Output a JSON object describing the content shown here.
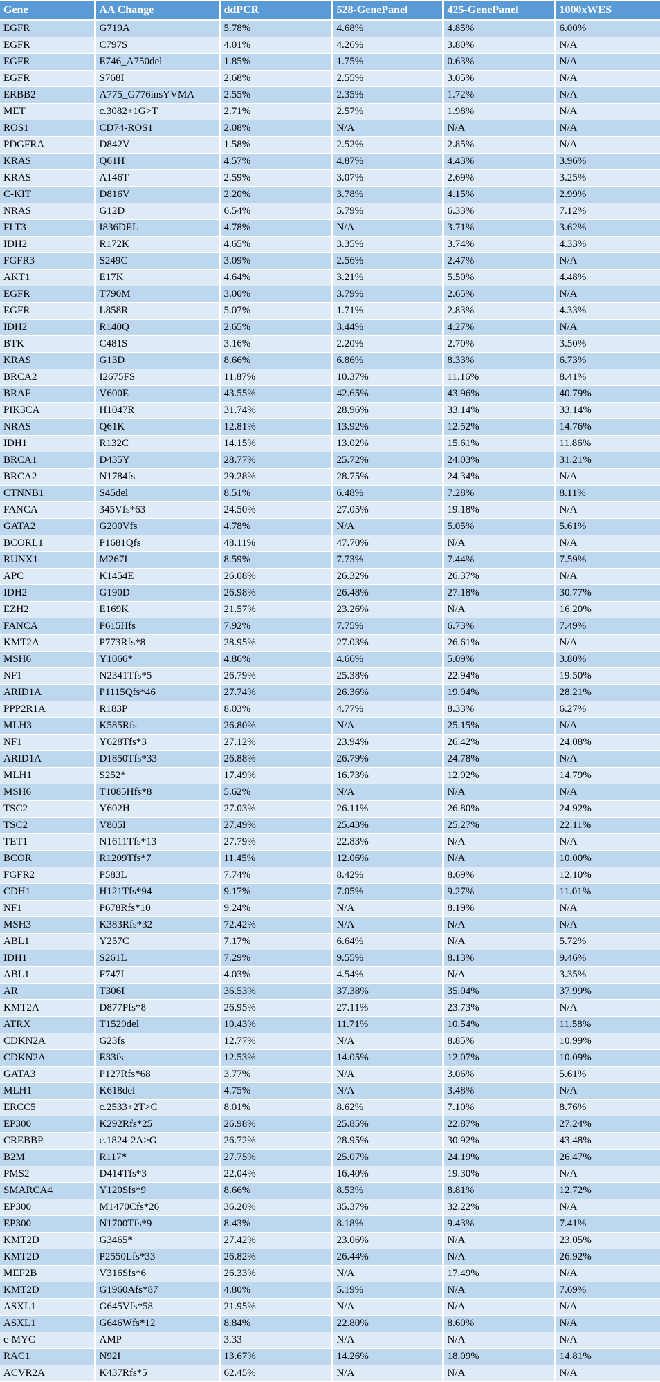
{
  "colors": {
    "header_bg": "#5B9BD5",
    "header_text": "#FFFFFF",
    "row_dark": "#BDD7EE",
    "row_light": "#DEEBF7",
    "body_text": "#000000",
    "grid": "#FFFFFF"
  },
  "table": {
    "columns": [
      {
        "key": "gene",
        "label": "Gene"
      },
      {
        "key": "aa-change",
        "label": "AA Change"
      },
      {
        "key": "ddpcr",
        "label": "ddPCR"
      },
      {
        "key": "panel-528",
        "label": "528-GenePanel"
      },
      {
        "key": "panel-425",
        "label": "425-GenePanel"
      },
      {
        "key": "wes-1000x",
        "label": "1000xWES"
      }
    ],
    "rows": [
      [
        "EGFR",
        "G719A",
        "5.78%",
        "4.68%",
        "4.85%",
        "6.00%"
      ],
      [
        "EGFR",
        "C797S",
        "4.01%",
        "4.26%",
        "3.80%",
        "N/A"
      ],
      [
        "EGFR",
        "E746_A750del",
        "1.85%",
        "1.75%",
        "0.63%",
        "N/A"
      ],
      [
        "EGFR",
        "S768I",
        "2.68%",
        "2.55%",
        "3.05%",
        "N/A"
      ],
      [
        "ERBB2",
        "A775_G776insYVMA",
        "2.55%",
        "2.35%",
        "1.72%",
        "N/A"
      ],
      [
        "MET",
        "c.3082+1G>T",
        "2.71%",
        "2.57%",
        "1.98%",
        "N/A"
      ],
      [
        "ROS1",
        "CD74-ROS1",
        "2.08%",
        "N/A",
        "N/A",
        "N/A"
      ],
      [
        "PDGFRA",
        "D842V",
        "1.58%",
        "2.52%",
        "2.85%",
        "N/A"
      ],
      [
        "KRAS",
        "Q61H",
        "4.57%",
        "4.87%",
        "4.43%",
        "3.96%"
      ],
      [
        "KRAS",
        "A146T",
        "2.59%",
        "3.07%",
        "2.69%",
        "3.25%"
      ],
      [
        "C-KIT",
        "D816V",
        "2.20%",
        "3.78%",
        "4.15%",
        "2.99%"
      ],
      [
        "NRAS",
        "G12D",
        "6.54%",
        "5.79%",
        "6.33%",
        "7.12%"
      ],
      [
        "FLT3",
        "I836DEL",
        "4.78%",
        "N/A",
        "3.71%",
        "3.62%"
      ],
      [
        "IDH2",
        "R172K",
        "4.65%",
        "3.35%",
        "3.74%",
        "4.33%"
      ],
      [
        "FGFR3",
        "S249C",
        "3.09%",
        "2.56%",
        "2.47%",
        "N/A"
      ],
      [
        "AKT1",
        "E17K",
        "4.64%",
        "3.21%",
        "5.50%",
        "4.48%"
      ],
      [
        "EGFR",
        "T790M",
        "3.00%",
        "3.79%",
        "2.65%",
        "N/A"
      ],
      [
        "EGFR",
        "L858R",
        "5.07%",
        "1.71%",
        "2.83%",
        "4.33%"
      ],
      [
        "IDH2",
        "R140Q",
        "2.65%",
        "3.44%",
        "4.27%",
        "N/A"
      ],
      [
        "BTK",
        "C481S",
        "3.16%",
        "2.20%",
        "2.70%",
        "3.50%"
      ],
      [
        "KRAS",
        "G13D",
        "8.66%",
        "6.86%",
        "8.33%",
        "6.73%"
      ],
      [
        "BRCA2",
        "I2675FS",
        "11.87%",
        "10.37%",
        "11.16%",
        "8.41%"
      ],
      [
        "BRAF",
        "V600E",
        "43.55%",
        "42.65%",
        "43.96%",
        "40.79%"
      ],
      [
        "PIK3CA",
        "H1047R",
        "31.74%",
        "28.96%",
        "33.14%",
        "33.14%"
      ],
      [
        "NRAS",
        "Q61K",
        "12.81%",
        "13.92%",
        "12.52%",
        "14.76%"
      ],
      [
        "IDH1",
        "R132C",
        "14.15%",
        "13.02%",
        "15.61%",
        "11.86%"
      ],
      [
        "BRCA1",
        "D435Y",
        "28.77%",
        "25.72%",
        "24.03%",
        "31.21%"
      ],
      [
        "BRCA2",
        "N1784fs",
        "29.28%",
        "28.75%",
        "24.34%",
        "N/A"
      ],
      [
        "CTNNB1",
        "S45del",
        "8.51%",
        "6.48%",
        "7.28%",
        "8.11%"
      ],
      [
        "FANCA",
        "345Vfs*63",
        "24.50%",
        "27.05%",
        "19.18%",
        "N/A"
      ],
      [
        "GATA2",
        "G200Vfs",
        "4.78%",
        "N/A",
        "5.05%",
        "5.61%"
      ],
      [
        "BCORL1",
        "P1681Qfs",
        "48.11%",
        "47.70%",
        "N/A",
        "N/A"
      ],
      [
        "RUNX1",
        "M267I",
        "8.59%",
        "7.73%",
        "7.44%",
        "7.59%"
      ],
      [
        "APC",
        "K1454E",
        "26.08%",
        "26.32%",
        "26.37%",
        "N/A"
      ],
      [
        "IDH2",
        "G190D",
        "26.98%",
        "26.48%",
        "27.18%",
        "30.77%"
      ],
      [
        "EZH2",
        "E169K",
        "21.57%",
        "23.26%",
        "N/A",
        "16.20%"
      ],
      [
        "FANCA",
        "P615Hfs",
        "7.92%",
        "7.75%",
        "6.73%",
        "7.49%"
      ],
      [
        "KMT2A",
        "P773Rfs*8",
        "28.95%",
        "27.03%",
        "26.61%",
        "N/A"
      ],
      [
        "MSH6",
        "Y1066*",
        "4.86%",
        "4.66%",
        "5.09%",
        "3.80%"
      ],
      [
        "NF1",
        "N2341Tfs*5",
        "26.79%",
        "25.38%",
        "22.94%",
        "19.50%"
      ],
      [
        "ARID1A",
        "P1115Qfs*46",
        "27.74%",
        "26.36%",
        "19.94%",
        "28.21%"
      ],
      [
        "PPP2R1A",
        "R183P",
        "8.03%",
        "4.77%",
        "8.33%",
        "6.27%"
      ],
      [
        "MLH3",
        "K585Rfs",
        "26.80%",
        "N/A",
        "25.15%",
        "N/A"
      ],
      [
        "NF1",
        "Y628Tfs*3",
        "27.12%",
        "23.94%",
        "26.42%",
        "24.08%"
      ],
      [
        "ARID1A",
        "D1850Tfs*33",
        "26.88%",
        "26.79%",
        "24.78%",
        "N/A"
      ],
      [
        "MLH1",
        "S252*",
        "17.49%",
        "16.73%",
        "12.92%",
        "14.79%"
      ],
      [
        "MSH6",
        "T1085Hfs*8",
        "5.62%",
        "N/A",
        "N/A",
        "N/A"
      ],
      [
        "TSC2",
        "Y602H",
        "27.03%",
        "26.11%",
        "26.80%",
        "24.92%"
      ],
      [
        "TSC2",
        "V805I",
        "27.49%",
        "25.43%",
        "25.27%",
        "22.11%"
      ],
      [
        "TET1",
        "N1611Tfs*13",
        "27.79%",
        "22.83%",
        "N/A",
        "N/A"
      ],
      [
        "BCOR",
        "R1209Tfs*7",
        "11.45%",
        "12.06%",
        "N/A",
        "10.00%"
      ],
      [
        "FGFR2",
        "P583L",
        "7.74%",
        "8.42%",
        "8.69%",
        "12.10%"
      ],
      [
        "CDH1",
        "H121Tfs*94",
        "9.17%",
        "7.05%",
        "9.27%",
        "11.01%"
      ],
      [
        "NF1",
        "P678Rfs*10",
        "9.24%",
        "N/A",
        "8.19%",
        "N/A"
      ],
      [
        "MSH3",
        "K383Rfs*32",
        "72.42%",
        "N/A",
        "N/A",
        "N/A"
      ],
      [
        "ABL1",
        "Y257C",
        "7.17%",
        "6.64%",
        "N/A",
        "5.72%"
      ],
      [
        "IDH1",
        "S261L",
        "7.29%",
        "9.55%",
        "8.13%",
        "9.46%"
      ],
      [
        "ABL1",
        "F747I",
        "4.03%",
        "4.54%",
        "N/A",
        "3.35%"
      ],
      [
        "AR",
        "T306I",
        "36.53%",
        "37.38%",
        "35.04%",
        "37.99%"
      ],
      [
        "KMT2A",
        "D877Pfs*8",
        "26.95%",
        "27.11%",
        "23.73%",
        "N/A"
      ],
      [
        "ATRX",
        "T1529del",
        "10.43%",
        "11.71%",
        "10.54%",
        "11.58%"
      ],
      [
        "CDKN2A",
        "G23fs",
        "12.77%",
        "N/A",
        "8.85%",
        "10.99%"
      ],
      [
        "CDKN2A",
        "E33fs",
        "12.53%",
        "14.05%",
        "12.07%",
        "10.09%"
      ],
      [
        "GATA3",
        "P127Rfs*68",
        "3.77%",
        "N/A",
        "3.06%",
        "5.61%"
      ],
      [
        "MLH1",
        "K618del",
        "4.75%",
        "N/A",
        "3.48%",
        "N/A"
      ],
      [
        "ERCC5",
        "c.2533+2T>C",
        "8.01%",
        "8.62%",
        "7.10%",
        "8.76%"
      ],
      [
        "EP300",
        "K292Rfs*25",
        "26.98%",
        "25.85%",
        "22.87%",
        "27.24%"
      ],
      [
        "CREBBP",
        "c.1824-2A>G",
        "26.72%",
        "28.95%",
        "30.92%",
        "43.48%"
      ],
      [
        "B2M",
        "R117*",
        "27.75%",
        "25.07%",
        "24.19%",
        "26.47%"
      ],
      [
        "PMS2",
        "D414Tfs*3",
        "22.04%",
        "16.40%",
        "19.30%",
        "N/A"
      ],
      [
        "SMARCA4",
        "Y120Sfs*9",
        "8.66%",
        "8.53%",
        "8.81%",
        "12.72%"
      ],
      [
        "EP300",
        "M1470Cfs*26",
        "36.20%",
        "35.37%",
        "32.22%",
        "N/A"
      ],
      [
        "EP300",
        "N1700Tfs*9",
        "8.43%",
        "8.18%",
        "9.43%",
        "7.41%"
      ],
      [
        "KMT2D",
        "G3465*",
        "27.42%",
        "23.06%",
        "N/A",
        "23.05%"
      ],
      [
        "KMT2D",
        "P2550Lfs*33",
        "26.82%",
        "26.44%",
        "N/A",
        "26.92%"
      ],
      [
        "MEF2B",
        "V316Sfs*6",
        "26.33%",
        "N/A",
        "17.49%",
        "N/A"
      ],
      [
        "KMT2D",
        "G1960Afs*87",
        "4.80%",
        "5.19%",
        "N/A",
        "7.69%"
      ],
      [
        "ASXL1",
        "G645Vfs*58",
        "21.95%",
        "N/A",
        "N/A",
        "N/A"
      ],
      [
        "ASXL1",
        "G646Wfs*12",
        "8.84%",
        "22.80%",
        "8.60%",
        "N/A"
      ],
      [
        "c-MYC",
        "AMP",
        "3.33",
        "N/A",
        "N/A",
        "N/A"
      ],
      [
        "RAC1",
        "N92I",
        "13.67%",
        "14.26%",
        "18.09%",
        "14.81%"
      ],
      [
        "ACVR2A",
        "K437Rfs*5",
        "62.45%",
        "N/A",
        "N/A",
        "N/A"
      ]
    ]
  }
}
